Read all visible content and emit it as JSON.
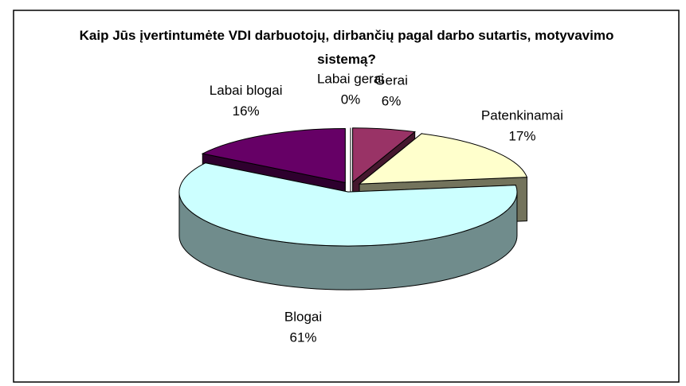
{
  "chart_data": {
    "type": "pie3d",
    "title": "Kaip Jūs įvertintumėte VDI darbuotojų, dirbančių pagal darbo sutartis, motyvavimo sistemą?",
    "categories": [
      "Labai gerai",
      "Gerai",
      "Patenkinamai",
      "Blogai",
      "Labai blogai"
    ],
    "values": [
      0,
      6,
      17,
      61,
      16
    ],
    "value_labels": [
      "0%",
      "6%",
      "17%",
      "61%",
      "16%"
    ],
    "colors": [
      "#ffffff",
      "#993366",
      "#ffffcc",
      "#ccffff",
      "#660066"
    ]
  }
}
